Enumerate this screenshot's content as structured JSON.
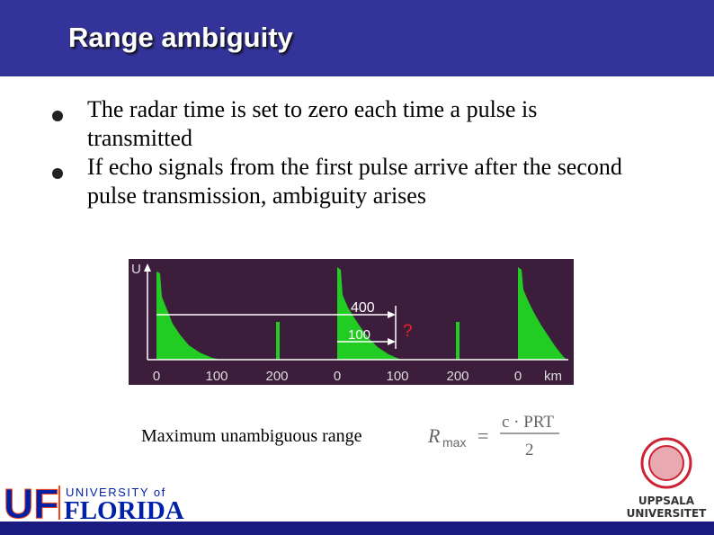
{
  "header": {
    "title": "Range ambiguity"
  },
  "bullets": [
    "The radar time is set to zero each time a pulse is transmitted",
    "If echo signals from the first pulse arrive after the second pulse transmission, ambiguity arises"
  ],
  "figure": {
    "axis_label": "U",
    "x_labels": [
      "0",
      "100",
      "200",
      "0",
      "100",
      "200",
      "0"
    ],
    "unit": "km",
    "arrow_labels": [
      "400",
      "100"
    ],
    "question": "?"
  },
  "formula": {
    "caption": "Maximum unambiguous range",
    "lhs": "R",
    "lhs_sub": "max",
    "equals": "=",
    "numerator": "c · PRT",
    "denominator": "2"
  },
  "logos": {
    "left": {
      "abbr": "UF",
      "line1": "UNIVERSITY of",
      "line2": "FLORIDA"
    },
    "right": {
      "line1": "UPPSALA",
      "line2": "UNIVERSITET"
    }
  }
}
